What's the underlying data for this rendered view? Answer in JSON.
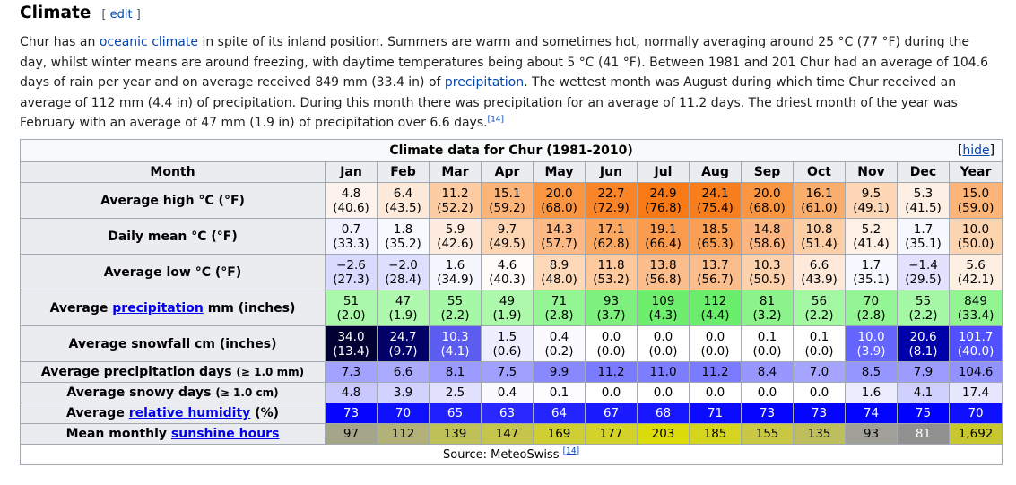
{
  "heading": {
    "title": "Climate",
    "edit_open": "[ ",
    "edit": "edit",
    "edit_close": " ]"
  },
  "paragraph": {
    "t1": "Chur has an ",
    "link1": "oceanic climate",
    "t2": " in spite of its inland position. Summers are warm and sometimes hot, normally averaging around 25 °C (77 °F) during the day, whilst winter means are around freezing, with daytime temperatures being about 5 °C (41 °F). Between 1981 and 201 Chur had an average of 104.6 days of rain per year and on average received 849 mm (33.4 in) of ",
    "link2": "precipitation",
    "t3": ". The wettest month was August during which time Chur received an average of 112 mm (4.4 in) of precipitation. During this month there was precipitation for an average of 11.2 days. The driest month of the year was February with an average of 47 mm (1.9 in) of precipitation over 6.6 days.",
    "ref": "[14]"
  },
  "table": {
    "caption": "Climate data for Chur (1981-2010)",
    "hide": "hide",
    "hide_open": "[",
    "hide_close": "]",
    "month_header": "Month",
    "months": [
      "Jan",
      "Feb",
      "Mar",
      "Apr",
      "May",
      "Jun",
      "Jul",
      "Aug",
      "Sep",
      "Oct",
      "Nov",
      "Dec",
      "Year"
    ],
    "rows": [
      {
        "label_pre": "Average high °C (°F)",
        "label_link": "",
        "label_post": "",
        "label_small": "",
        "type": "two",
        "cells": [
          {
            "a": "4.8",
            "b": "(40.6)",
            "bg": "#fdf3ec",
            "fg": "#000000"
          },
          {
            "a": "6.4",
            "b": "(43.5)",
            "bg": "#fde9da",
            "fg": "#000000"
          },
          {
            "a": "11.2",
            "b": "(52.2)",
            "bg": "#fdcca3",
            "fg": "#000000"
          },
          {
            "a": "15.1",
            "b": "(59.2)",
            "bg": "#fcb479",
            "fg": "#000000"
          },
          {
            "a": "20.0",
            "b": "(68.0)",
            "bg": "#fa9541",
            "fg": "#000000"
          },
          {
            "a": "22.7",
            "b": "(72.9)",
            "bg": "#f98528",
            "fg": "#000000"
          },
          {
            "a": "24.9",
            "b": "(76.8)",
            "bg": "#f77a17",
            "fg": "#000000"
          },
          {
            "a": "24.1",
            "b": "(75.4)",
            "bg": "#f87e1d",
            "fg": "#000000"
          },
          {
            "a": "20.0",
            "b": "(68.0)",
            "bg": "#fa9541",
            "fg": "#000000"
          },
          {
            "a": "16.1",
            "b": "(61.0)",
            "bg": "#fbad6b",
            "fg": "#000000"
          },
          {
            "a": "9.5",
            "b": "(49.1)",
            "bg": "#fdd6b5",
            "fg": "#000000"
          },
          {
            "a": "5.3",
            "b": "(41.5)",
            "bg": "#fdefe4",
            "fg": "#000000"
          },
          {
            "a": "15.0",
            "b": "(59.0)",
            "bg": "#fcb479",
            "fg": "#000000"
          }
        ]
      },
      {
        "label_pre": "Daily mean °C (°F)",
        "label_link": "",
        "label_post": "",
        "label_small": "",
        "type": "two",
        "cells": [
          {
            "a": "0.7",
            "b": "(33.3)",
            "bg": "#f0f0ff",
            "fg": "#000000"
          },
          {
            "a": "1.8",
            "b": "(35.2)",
            "bg": "#f8f8ff",
            "fg": "#000000"
          },
          {
            "a": "5.9",
            "b": "(42.6)",
            "bg": "#feece0",
            "fg": "#000000"
          },
          {
            "a": "9.7",
            "b": "(49.5)",
            "bg": "#fdd5b3",
            "fg": "#000000"
          },
          {
            "a": "14.3",
            "b": "(57.7)",
            "bg": "#fcb986",
            "fg": "#000000"
          },
          {
            "a": "17.1",
            "b": "(62.8)",
            "bg": "#fba862",
            "fg": "#000000"
          },
          {
            "a": "19.1",
            "b": "(66.4)",
            "bg": "#fa9b4d",
            "fg": "#000000"
          },
          {
            "a": "18.5",
            "b": "(65.3)",
            "bg": "#fa9f53",
            "fg": "#000000"
          },
          {
            "a": "14.8",
            "b": "(58.6)",
            "bg": "#fcb580",
            "fg": "#000000"
          },
          {
            "a": "10.8",
            "b": "(51.4)",
            "bg": "#fdcfa7",
            "fg": "#000000"
          },
          {
            "a": "5.2",
            "b": "(41.4)",
            "bg": "#fef0e5",
            "fg": "#000000"
          },
          {
            "a": "1.7",
            "b": "(35.1)",
            "bg": "#f7f7ff",
            "fg": "#000000"
          },
          {
            "a": "10.0",
            "b": "(50.0)",
            "bg": "#fdd4b0",
            "fg": "#000000"
          }
        ]
      },
      {
        "label_pre": "Average low °C (°F)",
        "label_link": "",
        "label_post": "",
        "label_small": "",
        "type": "two",
        "cells": [
          {
            "a": "−2.6",
            "b": "(27.3)",
            "bg": "#dadaff",
            "fg": "#000000"
          },
          {
            "a": "−2.0",
            "b": "(28.4)",
            "bg": "#dedeff",
            "fg": "#000000"
          },
          {
            "a": "1.6",
            "b": "(34.9)",
            "bg": "#f6f6ff",
            "fg": "#000000"
          },
          {
            "a": "4.6",
            "b": "(40.3)",
            "bg": "#fefbf8",
            "fg": "#000000"
          },
          {
            "a": "8.9",
            "b": "(48.0)",
            "bg": "#fdd9ba",
            "fg": "#000000"
          },
          {
            "a": "11.8",
            "b": "(53.2)",
            "bg": "#fdc99d",
            "fg": "#000000"
          },
          {
            "a": "13.8",
            "b": "(56.8)",
            "bg": "#fcbd8c",
            "fg": "#000000"
          },
          {
            "a": "13.7",
            "b": "(56.7)",
            "bg": "#fcbd8c",
            "fg": "#000000"
          },
          {
            "a": "10.3",
            "b": "(50.5)",
            "bg": "#fdd1ac",
            "fg": "#000000"
          },
          {
            "a": "6.6",
            "b": "(43.9)",
            "bg": "#fee9da",
            "fg": "#000000"
          },
          {
            "a": "1.7",
            "b": "(35.1)",
            "bg": "#f7f7ff",
            "fg": "#000000"
          },
          {
            "a": "−1.4",
            "b": "(29.5)",
            "bg": "#e2e2ff",
            "fg": "#000000"
          },
          {
            "a": "5.6",
            "b": "(42.1)",
            "bg": "#feefe3",
            "fg": "#000000"
          }
        ]
      },
      {
        "label_pre": "Average ",
        "label_link": "precipitation",
        "label_post": " mm (inches)",
        "label_small": "",
        "type": "two",
        "cells": [
          {
            "a": "51",
            "b": "(2.0)",
            "bg": "#aaf9aa",
            "fg": "#000000"
          },
          {
            "a": "47",
            "b": "(1.9)",
            "bg": "#aef9ae",
            "fg": "#000000"
          },
          {
            "a": "55",
            "b": "(2.2)",
            "bg": "#a5f8a5",
            "fg": "#000000"
          },
          {
            "a": "49",
            "b": "(1.9)",
            "bg": "#acf9ac",
            "fg": "#000000"
          },
          {
            "a": "71",
            "b": "(2.8)",
            "bg": "#93f593",
            "fg": "#000000"
          },
          {
            "a": "93",
            "b": "(3.7)",
            "bg": "#7df07d",
            "fg": "#000000"
          },
          {
            "a": "109",
            "b": "(4.3)",
            "bg": "#6dee6d",
            "fg": "#000000"
          },
          {
            "a": "112",
            "b": "(4.4)",
            "bg": "#6aed6a",
            "fg": "#000000"
          },
          {
            "a": "81",
            "b": "(3.2)",
            "bg": "#8af38a",
            "fg": "#000000"
          },
          {
            "a": "56",
            "b": "(2.2)",
            "bg": "#a4f8a4",
            "fg": "#000000"
          },
          {
            "a": "70",
            "b": "(2.8)",
            "bg": "#94f594",
            "fg": "#000000"
          },
          {
            "a": "55",
            "b": "(2.2)",
            "bg": "#a5f8a5",
            "fg": "#000000"
          },
          {
            "a": "849",
            "b": "(33.4)",
            "bg": "#92f592",
            "fg": "#000000"
          }
        ]
      },
      {
        "label_pre": "Average snowfall cm (inches)",
        "label_link": "",
        "label_post": "",
        "label_small": "",
        "type": "two",
        "cells": [
          {
            "a": "34.0",
            "b": "(13.4)",
            "bg": "#000033",
            "fg": "#ffffff"
          },
          {
            "a": "24.7",
            "b": "(9.7)",
            "bg": "#000066",
            "fg": "#ffffff"
          },
          {
            "a": "10.3",
            "b": "(4.1)",
            "bg": "#5c5cf0",
            "fg": "#ffffff"
          },
          {
            "a": "1.5",
            "b": "(0.6)",
            "bg": "#eeeeff",
            "fg": "#000000"
          },
          {
            "a": "0.4",
            "b": "(0.2)",
            "bg": "#fbfbff",
            "fg": "#000000"
          },
          {
            "a": "0.0",
            "b": "(0.0)",
            "bg": "#ffffff",
            "fg": "#000000"
          },
          {
            "a": "0.0",
            "b": "(0.0)",
            "bg": "#ffffff",
            "fg": "#000000"
          },
          {
            "a": "0.0",
            "b": "(0.0)",
            "bg": "#ffffff",
            "fg": "#000000"
          },
          {
            "a": "0.1",
            "b": "(0.0)",
            "bg": "#fefeff",
            "fg": "#000000"
          },
          {
            "a": "0.1",
            "b": "(0.0)",
            "bg": "#fefeff",
            "fg": "#000000"
          },
          {
            "a": "10.0",
            "b": "(3.9)",
            "bg": "#6464ff",
            "fg": "#ffffff"
          },
          {
            "a": "20.6",
            "b": "(8.1)",
            "bg": "#0000aa",
            "fg": "#ffffff"
          },
          {
            "a": "101.7",
            "b": "(40.0)",
            "bg": "#5050ff",
            "fg": "#ffffff"
          }
        ]
      },
      {
        "label_pre": "Average precipitation days ",
        "label_link": "",
        "label_post": "",
        "label_small": "(≥ 1.0 mm)",
        "type": "one",
        "cells": [
          {
            "a": "7.3",
            "bg": "#a2a2ff",
            "fg": "#000000"
          },
          {
            "a": "6.6",
            "bg": "#aaaaff",
            "fg": "#000000"
          },
          {
            "a": "8.1",
            "bg": "#9a9aff",
            "fg": "#000000"
          },
          {
            "a": "7.5",
            "bg": "#a0a0ff",
            "fg": "#000000"
          },
          {
            "a": "9.9",
            "bg": "#8989ff",
            "fg": "#000000"
          },
          {
            "a": "11.2",
            "bg": "#7b7bff",
            "fg": "#000000"
          },
          {
            "a": "11.0",
            "bg": "#7d7dff",
            "fg": "#000000"
          },
          {
            "a": "11.2",
            "bg": "#7b7bff",
            "fg": "#000000"
          },
          {
            "a": "8.4",
            "bg": "#9797ff",
            "fg": "#000000"
          },
          {
            "a": "7.0",
            "bg": "#a5a5ff",
            "fg": "#000000"
          },
          {
            "a": "8.5",
            "bg": "#9696ff",
            "fg": "#000000"
          },
          {
            "a": "7.9",
            "bg": "#9c9cff",
            "fg": "#000000"
          },
          {
            "a": "104.6",
            "bg": "#9292ff",
            "fg": "#000000"
          }
        ]
      },
      {
        "label_pre": "Average snowy days ",
        "label_link": "",
        "label_post": "",
        "label_small": "(≥ 1.0 cm)",
        "type": "one",
        "cells": [
          {
            "a": "4.8",
            "bg": "#c8c8ff",
            "fg": "#000000"
          },
          {
            "a": "3.9",
            "bg": "#d2d2ff",
            "fg": "#000000"
          },
          {
            "a": "2.5",
            "bg": "#e2e2ff",
            "fg": "#000000"
          },
          {
            "a": "0.4",
            "bg": "#fafaff",
            "fg": "#000000"
          },
          {
            "a": "0.1",
            "bg": "#fdfdff",
            "fg": "#000000"
          },
          {
            "a": "0.0",
            "bg": "#ffffff",
            "fg": "#000000"
          },
          {
            "a": "0.0",
            "bg": "#ffffff",
            "fg": "#000000"
          },
          {
            "a": "0.0",
            "bg": "#ffffff",
            "fg": "#000000"
          },
          {
            "a": "0.0",
            "bg": "#ffffff",
            "fg": "#000000"
          },
          {
            "a": "0.0",
            "bg": "#ffffff",
            "fg": "#000000"
          },
          {
            "a": "1.6",
            "bg": "#ececff",
            "fg": "#000000"
          },
          {
            "a": "4.1",
            "bg": "#d0d0ff",
            "fg": "#000000"
          },
          {
            "a": "17.4",
            "bg": "#e6e6ff",
            "fg": "#000000"
          }
        ]
      },
      {
        "label_pre": "Average ",
        "label_link": "relative humidity",
        "label_post": " (%)",
        "label_small": "",
        "type": "one",
        "cells": [
          {
            "a": "73",
            "bg": "#0505ff",
            "fg": "#ffffff"
          },
          {
            "a": "70",
            "bg": "#0f0fff",
            "fg": "#ffffff"
          },
          {
            "a": "65",
            "bg": "#2020ff",
            "fg": "#ffffff"
          },
          {
            "a": "63",
            "bg": "#2828ff",
            "fg": "#ffffff"
          },
          {
            "a": "64",
            "bg": "#2424ff",
            "fg": "#ffffff"
          },
          {
            "a": "67",
            "bg": "#1a1aff",
            "fg": "#ffffff"
          },
          {
            "a": "68",
            "bg": "#1616ff",
            "fg": "#ffffff"
          },
          {
            "a": "71",
            "bg": "#0b0bff",
            "fg": "#ffffff"
          },
          {
            "a": "73",
            "bg": "#0505ff",
            "fg": "#ffffff"
          },
          {
            "a": "73",
            "bg": "#0505ff",
            "fg": "#ffffff"
          },
          {
            "a": "74",
            "bg": "#0202ff",
            "fg": "#ffffff"
          },
          {
            "a": "75",
            "bg": "#0000ff",
            "fg": "#ffffff"
          },
          {
            "a": "70",
            "bg": "#0f0fff",
            "fg": "#ffffff"
          }
        ]
      },
      {
        "label_pre": "Mean monthly ",
        "label_link": "sunshine hours",
        "label_post": "",
        "label_small": "",
        "type": "one",
        "cells": [
          {
            "a": "97",
            "bg": "#a5a58a",
            "fg": "#000000"
          },
          {
            "a": "112",
            "bg": "#b2b278",
            "fg": "#000000"
          },
          {
            "a": "139",
            "bg": "#c0c058",
            "fg": "#000000"
          },
          {
            "a": "147",
            "bg": "#c5c54d",
            "fg": "#000000"
          },
          {
            "a": "169",
            "bg": "#cfcf33",
            "fg": "#000000"
          },
          {
            "a": "177",
            "bg": "#d2d22a",
            "fg": "#000000"
          },
          {
            "a": "203",
            "bg": "#dcdc0b",
            "fg": "#000000"
          },
          {
            "a": "185",
            "bg": "#d5d520",
            "fg": "#000000"
          },
          {
            "a": "155",
            "bg": "#c8c845",
            "fg": "#000000"
          },
          {
            "a": "135",
            "bg": "#bebe5e",
            "fg": "#000000"
          },
          {
            "a": "93",
            "bg": "#a0a098",
            "fg": "#000000"
          },
          {
            "a": "81",
            "bg": "#909090",
            "fg": "#ffffff"
          },
          {
            "a": "1,692",
            "bg": "#c7c730",
            "fg": "#000000"
          }
        ]
      }
    ],
    "source_text": "Source: MeteoSwiss ",
    "source_ref": "[14]"
  }
}
